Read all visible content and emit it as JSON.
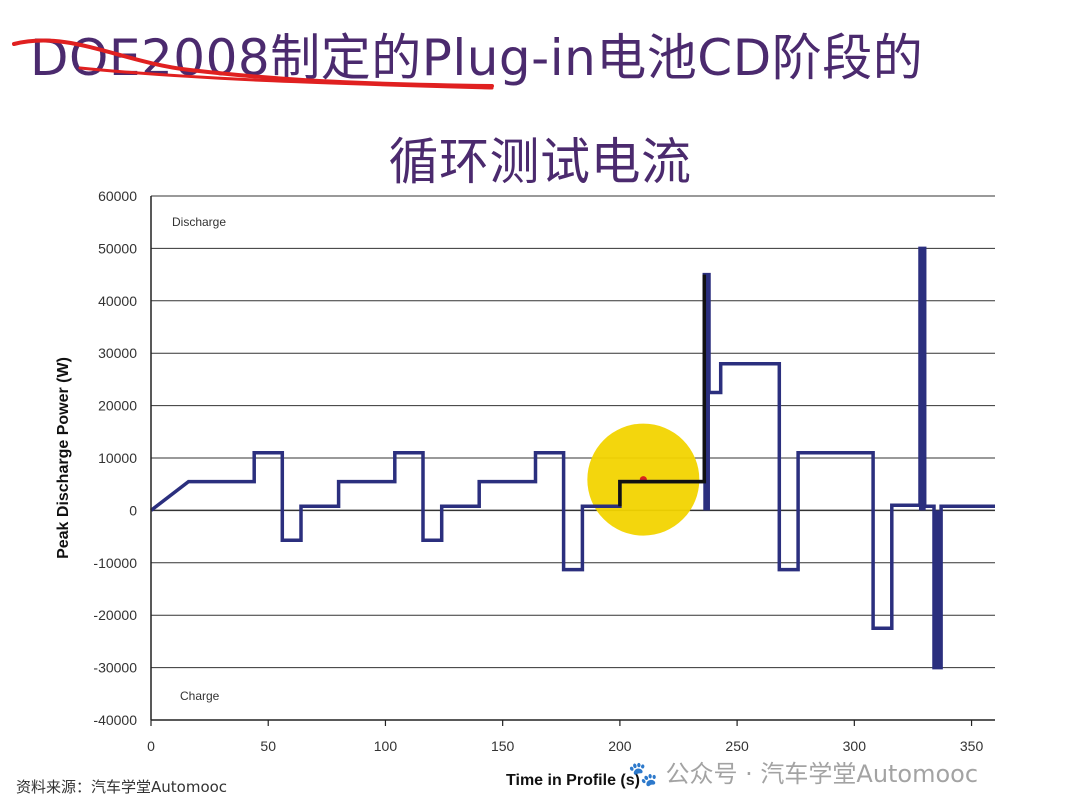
{
  "slide": {
    "title_line1": "DOE2008制定的Plug-in电池CD阶段的",
    "title_line2": "循环测试电流",
    "source": "资料来源：汽车学堂Automooc",
    "watermark": "🐾 公众号 · 汽车学堂Automooc"
  },
  "colors": {
    "series": "#2b2f7e",
    "highlight_segment": "#111111",
    "highlight_circle": "#f2d400",
    "highlight_dot": "#d9261c",
    "annotation": "#e02020",
    "grid": "#333333"
  },
  "chart_data": {
    "type": "line",
    "xlabel": "Time in Profile (s)",
    "ylabel": "Peak Discharge Power (W)",
    "xlim": [
      0,
      360
    ],
    "ylim": [
      -40000,
      60000
    ],
    "x_ticks": [
      0,
      50,
      100,
      150,
      200,
      250,
      300,
      350
    ],
    "y_ticks": [
      -40000,
      -30000,
      -20000,
      -10000,
      0,
      10000,
      20000,
      30000,
      40000,
      50000,
      60000
    ],
    "grid": "horizontal",
    "annotations": [
      "Discharge",
      "Charge"
    ],
    "series": [
      {
        "x": [
          0,
          16,
          16,
          44,
          44,
          56,
          56,
          64,
          64,
          80,
          80,
          104,
          104,
          116,
          116,
          124,
          124,
          140,
          140,
          164,
          164,
          176,
          176,
          184,
          184,
          200,
          200,
          236,
          236,
          238,
          238,
          243,
          243,
          268,
          268,
          276,
          276,
          308,
          308,
          316,
          316,
          328,
          328,
          330,
          330,
          334,
          334,
          337,
          337,
          360
        ],
        "y": [
          0,
          5500,
          5500,
          5500,
          11000,
          11000,
          -5700,
          -5700,
          800,
          800,
          5500,
          5500,
          11000,
          11000,
          -5700,
          -5700,
          800,
          800,
          5500,
          5500,
          11000,
          11000,
          -11300,
          -11300,
          800,
          800,
          5500,
          5500,
          45000,
          45000,
          22500,
          22500,
          28000,
          28000,
          -11300,
          -11300,
          11000,
          11000,
          -22500,
          -22500,
          1000,
          1000,
          50000,
          50000,
          800,
          800,
          -30000,
          -30000,
          800,
          800
        ]
      }
    ],
    "highlight": {
      "x_range": [
        188,
        236
      ],
      "marker": [
        210,
        5500
      ]
    }
  }
}
